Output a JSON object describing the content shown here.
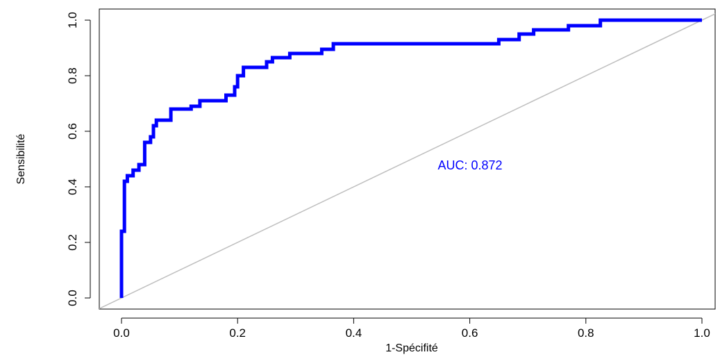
{
  "chart_data": {
    "type": "line",
    "xlabel": "1-Spécifité",
    "ylabel": "Sensibilité",
    "xlim": [
      0.0,
      1.0
    ],
    "ylim": [
      0.0,
      1.0
    ],
    "x_ticks": [
      "0.0",
      "0.2",
      "0.4",
      "0.6",
      "0.8",
      "1.0"
    ],
    "y_ticks": [
      "0.0",
      "0.2",
      "0.4",
      "0.6",
      "0.8",
      "1.0"
    ],
    "annotation": "AUC: 0.872",
    "grid": false,
    "colors": {
      "roc": "#0000ff",
      "diagonal": "#bebebe",
      "annotation": "#0000ff"
    },
    "series": [
      {
        "values": [
          [
            0.0,
            0.0
          ],
          [
            0.0,
            0.24
          ],
          [
            0.005,
            0.24
          ],
          [
            0.005,
            0.4
          ],
          [
            0.005,
            0.42
          ],
          [
            0.01,
            0.42
          ],
          [
            0.01,
            0.44
          ],
          [
            0.02,
            0.44
          ],
          [
            0.02,
            0.46
          ],
          [
            0.03,
            0.46
          ],
          [
            0.03,
            0.48
          ],
          [
            0.04,
            0.48
          ],
          [
            0.04,
            0.51
          ],
          [
            0.04,
            0.56
          ],
          [
            0.05,
            0.56
          ],
          [
            0.05,
            0.58
          ],
          [
            0.055,
            0.58
          ],
          [
            0.055,
            0.62
          ],
          [
            0.06,
            0.62
          ],
          [
            0.06,
            0.64
          ],
          [
            0.085,
            0.64
          ],
          [
            0.085,
            0.68
          ],
          [
            0.12,
            0.68
          ],
          [
            0.12,
            0.69
          ],
          [
            0.135,
            0.69
          ],
          [
            0.135,
            0.71
          ],
          [
            0.18,
            0.71
          ],
          [
            0.18,
            0.73
          ],
          [
            0.195,
            0.73
          ],
          [
            0.195,
            0.76
          ],
          [
            0.2,
            0.76
          ],
          [
            0.2,
            0.8
          ],
          [
            0.21,
            0.8
          ],
          [
            0.21,
            0.83
          ],
          [
            0.25,
            0.83
          ],
          [
            0.25,
            0.85
          ],
          [
            0.26,
            0.85
          ],
          [
            0.26,
            0.865
          ],
          [
            0.29,
            0.865
          ],
          [
            0.29,
            0.88
          ],
          [
            0.345,
            0.88
          ],
          [
            0.345,
            0.895
          ],
          [
            0.365,
            0.895
          ],
          [
            0.365,
            0.915
          ],
          [
            0.65,
            0.915
          ],
          [
            0.65,
            0.93
          ],
          [
            0.685,
            0.93
          ],
          [
            0.685,
            0.95
          ],
          [
            0.71,
            0.95
          ],
          [
            0.71,
            0.965
          ],
          [
            0.77,
            0.965
          ],
          [
            0.77,
            0.98
          ],
          [
            0.825,
            0.98
          ],
          [
            0.825,
            1.0
          ],
          [
            1.0,
            1.0
          ]
        ]
      },
      {
        "values": [
          [
            -0.04,
            -0.04
          ],
          [
            1.04,
            1.04
          ]
        ]
      }
    ]
  }
}
